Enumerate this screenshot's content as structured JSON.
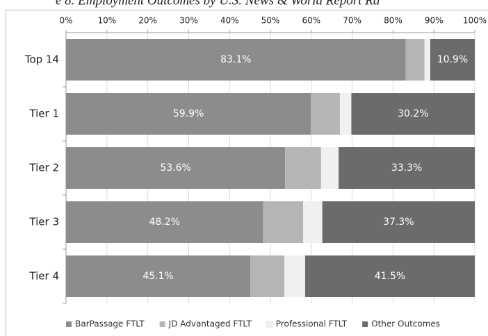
{
  "chart_data": {
    "type": "stacked-bar-horizontal",
    "title": "e 8. Employment Outcomes by U.S. News & World Report Ra",
    "categories": [
      "Top 14",
      "Tier 1",
      "Tier 2",
      "Tier 3",
      "Tier 4"
    ],
    "series": [
      {
        "name": "BarPassage FTLT",
        "color": "#8c8c8c",
        "values": [
          83.1,
          59.9,
          53.6,
          48.2,
          45.1
        ],
        "value_labels": [
          "83.1%",
          "59.9%",
          "53.6%",
          "48.2%",
          "45.1%"
        ]
      },
      {
        "name": "JD Advantaged FTLT",
        "color": "#b5b5b5",
        "values": [
          4.6,
          7.1,
          8.8,
          9.8,
          8.3
        ]
      },
      {
        "name": "Professional FTLT",
        "color": "#f0f0f0",
        "values": [
          1.4,
          2.8,
          4.3,
          4.7,
          5.1
        ]
      },
      {
        "name": "Other Outcomes",
        "color": "#6b6b6b",
        "values": [
          10.9,
          30.2,
          33.3,
          37.3,
          41.5
        ],
        "value_labels": [
          "10.9%",
          "30.2%",
          "33.3%",
          "37.3%",
          "41.5%"
        ]
      }
    ],
    "xlim": [
      0,
      100
    ],
    "xticks": [
      {
        "value": 0,
        "label": "0%"
      },
      {
        "value": 10,
        "label": "10%"
      },
      {
        "value": 20,
        "label": "20%"
      },
      {
        "value": 30,
        "label": "30%"
      },
      {
        "value": 40,
        "label": "40%"
      },
      {
        "value": 50,
        "label": "50%"
      },
      {
        "value": 60,
        "label": "60%"
      },
      {
        "value": 70,
        "label": "70%"
      },
      {
        "value": 80,
        "label": "80%"
      },
      {
        "value": 90,
        "label": "90%"
      },
      {
        "value": 100,
        "label": "100%"
      }
    ],
    "grid": true,
    "legend": "bottom"
  }
}
